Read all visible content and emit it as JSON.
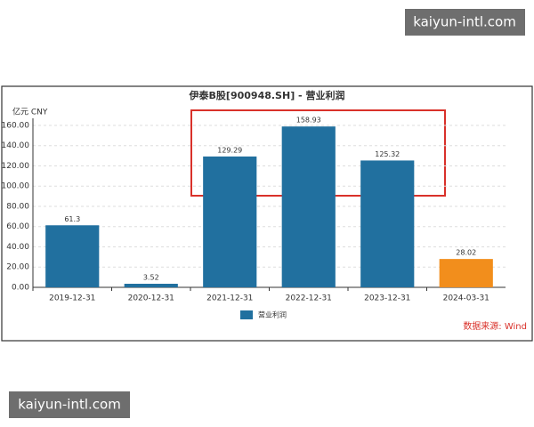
{
  "chart_data": {
    "type": "bar",
    "title": "伊泰B股[900948.SH] - 营业利润",
    "y_label": "亿元  CNY",
    "categories": [
      "2019-12-31",
      "2020-12-31",
      "2021-12-31",
      "2022-12-31",
      "2023-12-31",
      "2024-03-31"
    ],
    "series": [
      {
        "name": "营业利润",
        "color": "#21709f",
        "colors": [
          "#21709f",
          "#21709f",
          "#21709f",
          "#21709f",
          "#21709f",
          "#f28e1c"
        ],
        "values": [
          61.3,
          3.52,
          129.29,
          158.93,
          125.32,
          28.02
        ]
      }
    ],
    "ylim": [
      0,
      167
    ],
    "yticks": [
      {
        "value": 0,
        "label": "0.00"
      },
      {
        "value": 20,
        "label": "20.00"
      },
      {
        "value": 40,
        "label": "40.00"
      },
      {
        "value": 60,
        "label": "60.00"
      },
      {
        "value": 80,
        "label": "80.00"
      },
      {
        "value": 100,
        "label": "100.00"
      },
      {
        "value": 120,
        "label": "120.00"
      },
      {
        "value": 140,
        "label": "140.00"
      },
      {
        "value": 160,
        "label": "160.00"
      }
    ],
    "grid": true,
    "legend": "bottom",
    "source": "数据来源: Wind"
  },
  "watermarks": [
    "kaiyun-intl.com",
    "kaiyun-intl.com"
  ]
}
